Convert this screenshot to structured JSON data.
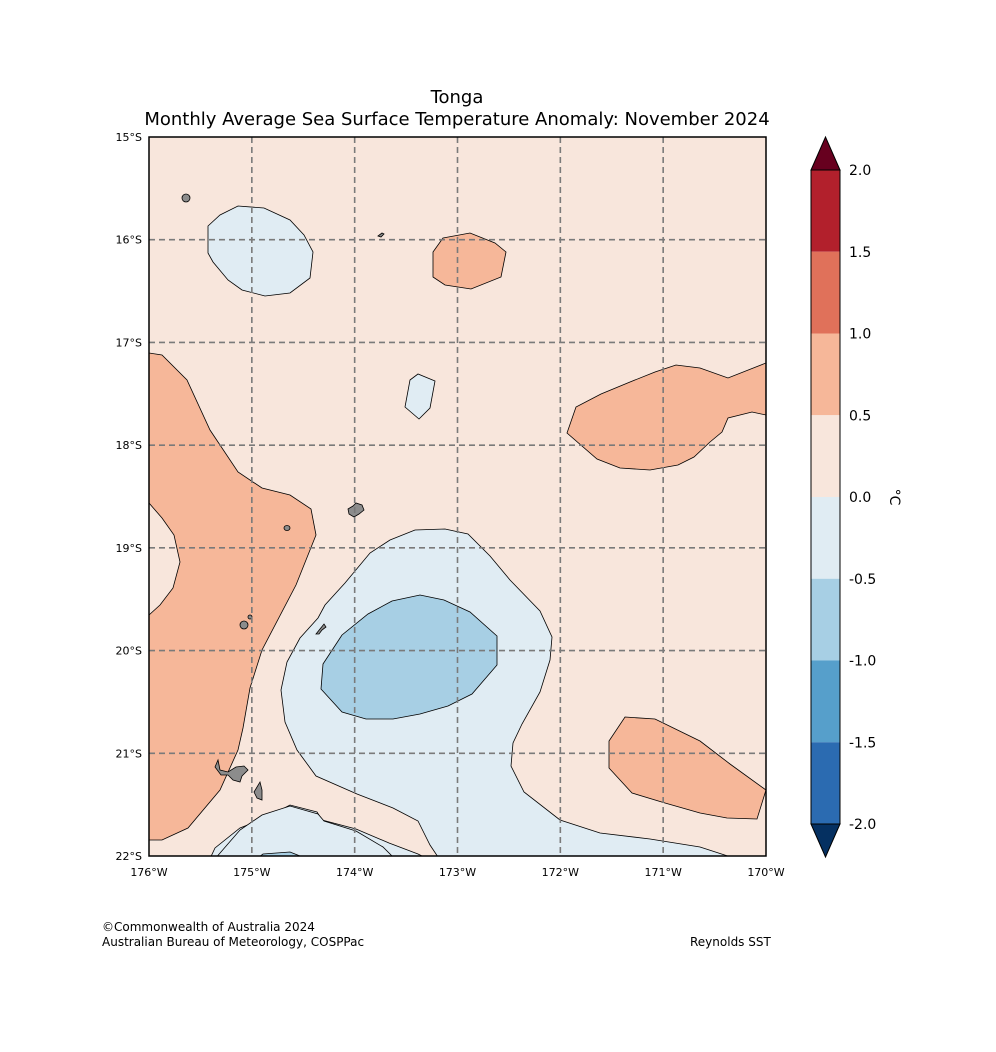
{
  "figure": {
    "title": "Tonga",
    "subtitle": "Monthly Average Sea Surface Temperature Anomaly: November 2024",
    "credit_line1": "©Commonwealth of Australia 2024",
    "credit_line2": "Australian Bureau of Meteorology, COSPPac",
    "source": "Reynolds SST"
  },
  "chart_data": {
    "type": "heatmap",
    "title": "Monthly Average Sea Surface Temperature Anomaly: November 2024",
    "region": "Tonga",
    "lon_range": [
      -176,
      -170
    ],
    "lat_range": [
      -22,
      -15
    ],
    "x_ticks": [
      "176°W",
      "175°W",
      "174°W",
      "173°W",
      "172°W",
      "171°W",
      "170°W"
    ],
    "y_ticks": [
      "15°S",
      "16°S",
      "17°S",
      "18°S",
      "19°S",
      "20°S",
      "21°S",
      "22°S"
    ],
    "grid": true,
    "background_level": "0.0 to 0.5",
    "colorbar": {
      "label": "°C",
      "tick_labels": [
        "2.0",
        "1.5",
        "1.0",
        "0.5",
        "0.0",
        "-0.5",
        "-1.0",
        "-1.5",
        "-2.0"
      ],
      "bins": [
        {
          "range": "> 2.0",
          "color": "#67001f"
        },
        {
          "range": "1.5 to 2.0",
          "color": "#b2202c"
        },
        {
          "range": "1.0 to 1.5",
          "color": "#e0715a"
        },
        {
          "range": "0.5 to 1.0",
          "color": "#f6b799"
        },
        {
          "range": "0.0 to 0.5",
          "color": "#f8e6dc"
        },
        {
          "range": "-0.5 to 0.0",
          "color": "#e0ecf3"
        },
        {
          "range": "-1.0 to -0.5",
          "color": "#a7cfe4"
        },
        {
          "range": "-1.5 to -1.0",
          "color": "#569fcb"
        },
        {
          "range": "-2.0 to -1.5",
          "color": "#2b6bb1"
        },
        {
          "range": "< -2.0",
          "color": "#053061"
        }
      ]
    },
    "anomaly_regions": [
      {
        "name": "western warm band",
        "level": "0.5 to 1.0"
      },
      {
        "name": "north-central warm patch",
        "level": "0.5 to 1.0"
      },
      {
        "name": "eastern warm tongue",
        "level": "0.5 to 1.0"
      },
      {
        "name": "south-eastern warm patch",
        "level": "0.5 to 1.0"
      },
      {
        "name": "north-western cool patch",
        "level": "-0.5 to 0.0"
      },
      {
        "name": "small central cool patch",
        "level": "-0.5 to 0.0"
      },
      {
        "name": "southern cool region",
        "level": "-0.5 to 0.0"
      },
      {
        "name": "southern cool core",
        "level": "-1.0 to -0.5"
      }
    ]
  }
}
